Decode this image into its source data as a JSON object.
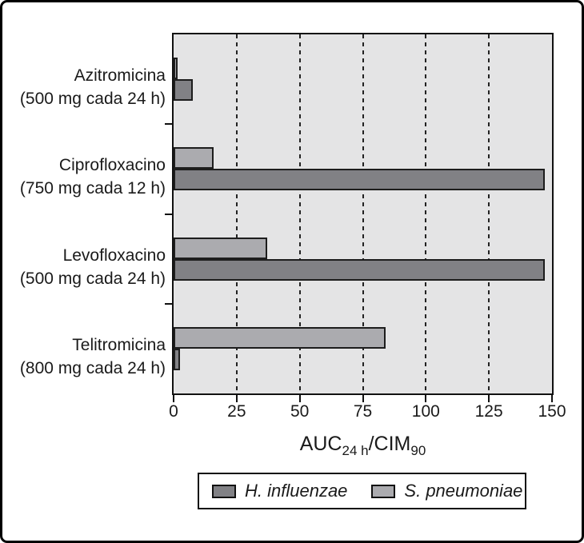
{
  "chart_data": {
    "type": "bar",
    "orientation": "horizontal",
    "categories": [
      {
        "name": "Azitromicina",
        "dose": "(500 mg cada 24 h)"
      },
      {
        "name": "Ciprofloxacino",
        "dose": "(750 mg cada 12 h)"
      },
      {
        "name": "Levofloxacino",
        "dose": "(500 mg cada 24 h)"
      },
      {
        "name": "Telitromicina",
        "dose": "(800 mg cada 24 h)"
      }
    ],
    "series": [
      {
        "name": "H. influenzae",
        "color": "#818185",
        "values": [
          7.5,
          147,
          147,
          2.5
        ]
      },
      {
        "name": "S. pneumoniae",
        "color": "#ababaf",
        "values": [
          1.5,
          16,
          37,
          84
        ]
      }
    ],
    "group_order_top_to_bottom": [
      "S. pneumoniae",
      "H. influenzae"
    ],
    "xlabel": {
      "prefix": "AUC",
      "sub1": "24 h",
      "mid": "/CIM",
      "sub2": "90"
    },
    "x_ticks": [
      0,
      25,
      50,
      75,
      100,
      125,
      150
    ],
    "xlim": [
      0,
      150
    ],
    "grid": "vertical-dashed",
    "legend_position": "bottom-center",
    "colors": {
      "plot_background": "#e4e4e5",
      "axis": "#111111",
      "text": "#1a1a1a",
      "bar_border": "#1d1d1d"
    }
  }
}
